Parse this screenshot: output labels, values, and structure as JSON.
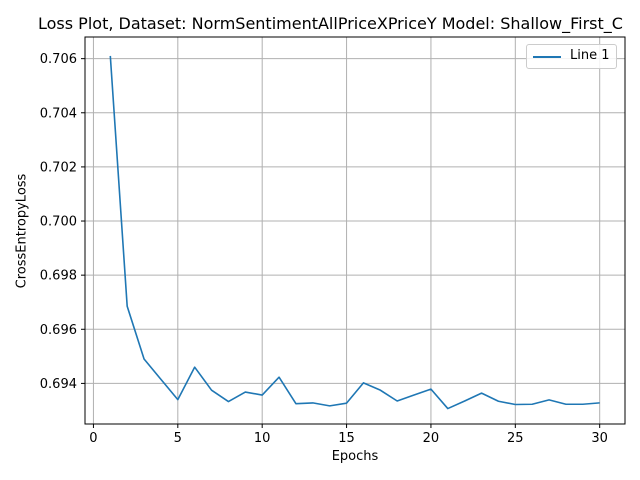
{
  "chart_data": {
    "type": "line",
    "title": "Loss Plot, Dataset: NormSentimentAllPriceXPriceY Model: Shallow_First_C",
    "xlabel": "Epochs",
    "ylabel": "CrossEntropyLoss",
    "grid": true,
    "legend_position": "top-right",
    "xlim": [
      -0.5,
      31.5
    ],
    "ylim": [
      0.6925,
      0.7068
    ],
    "xticks": [
      0,
      5,
      10,
      15,
      20,
      25,
      30
    ],
    "yticks": [
      0.694,
      0.696,
      0.698,
      0.7,
      0.702,
      0.704,
      0.706
    ],
    "ytick_labels": [
      "0.694",
      "0.696",
      "0.698",
      "0.700",
      "0.702",
      "0.704",
      "0.706"
    ],
    "x": [
      1,
      2,
      3,
      4,
      5,
      6,
      7,
      8,
      9,
      10,
      11,
      12,
      13,
      14,
      15,
      16,
      17,
      18,
      19,
      20,
      21,
      22,
      23,
      24,
      25,
      26,
      27,
      28,
      29,
      30
    ],
    "series": [
      {
        "name": "Line 1",
        "color": "#1f77b4",
        "values": [
          0.7061,
          0.69685,
          0.6949,
          0.69415,
          0.6934,
          0.6946,
          0.69375,
          0.69333,
          0.69368,
          0.69357,
          0.69423,
          0.69325,
          0.69328,
          0.69317,
          0.69327,
          0.69402,
          0.69375,
          0.69335,
          0.69357,
          0.69379,
          0.69307,
          0.69335,
          0.69364,
          0.69334,
          0.69322,
          0.69323,
          0.69339,
          0.69323,
          0.69323,
          0.69328
        ]
      }
    ]
  }
}
